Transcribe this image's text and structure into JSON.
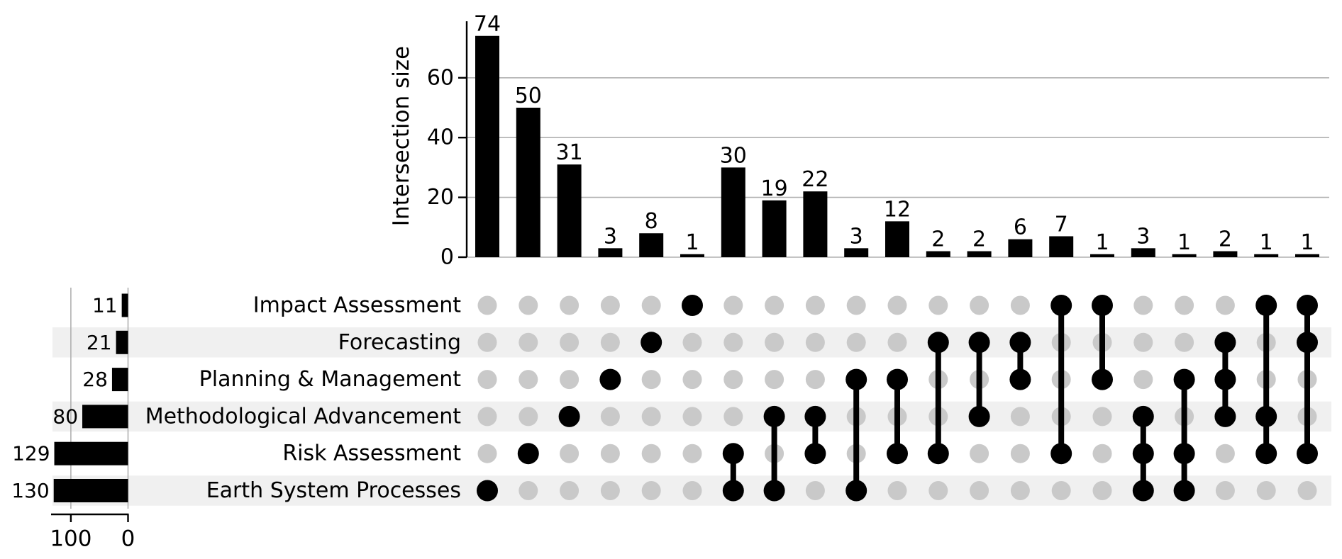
{
  "chart_data": {
    "type": "upset",
    "ylabel": "Intersection size",
    "intersection_axis_ticks": [
      0,
      20,
      40,
      60
    ],
    "totals_axis_ticks": [
      100,
      0
    ],
    "sets": [
      {
        "label": "Impact Assessment",
        "total": 11
      },
      {
        "label": "Forecasting",
        "total": 21
      },
      {
        "label": "Planning & Management",
        "total": 28
      },
      {
        "label": "Methodological Advancement",
        "total": 80
      },
      {
        "label": "Risk Assessment",
        "total": 129
      },
      {
        "label": "Earth System Processes",
        "total": 130
      }
    ],
    "intersections": [
      {
        "size": 74,
        "sets": [
          "Earth System Processes"
        ]
      },
      {
        "size": 50,
        "sets": [
          "Risk Assessment"
        ]
      },
      {
        "size": 31,
        "sets": [
          "Methodological Advancement"
        ]
      },
      {
        "size": 3,
        "sets": [
          "Planning & Management"
        ]
      },
      {
        "size": 8,
        "sets": [
          "Forecasting"
        ]
      },
      {
        "size": 1,
        "sets": [
          "Impact Assessment"
        ]
      },
      {
        "size": 30,
        "sets": [
          "Risk Assessment",
          "Earth System Processes"
        ]
      },
      {
        "size": 19,
        "sets": [
          "Methodological Advancement",
          "Earth System Processes"
        ]
      },
      {
        "size": 22,
        "sets": [
          "Methodological Advancement",
          "Risk Assessment"
        ]
      },
      {
        "size": 3,
        "sets": [
          "Planning & Management",
          "Earth System Processes"
        ]
      },
      {
        "size": 12,
        "sets": [
          "Planning & Management",
          "Risk Assessment"
        ]
      },
      {
        "size": 2,
        "sets": [
          "Forecasting",
          "Risk Assessment"
        ]
      },
      {
        "size": 2,
        "sets": [
          "Forecasting",
          "Methodological Advancement"
        ]
      },
      {
        "size": 6,
        "sets": [
          "Forecasting",
          "Planning & Management"
        ]
      },
      {
        "size": 7,
        "sets": [
          "Impact Assessment",
          "Risk Assessment"
        ]
      },
      {
        "size": 1,
        "sets": [
          "Impact Assessment",
          "Planning & Management"
        ]
      },
      {
        "size": 3,
        "sets": [
          "Methodological Advancement",
          "Risk Assessment",
          "Earth System Processes"
        ]
      },
      {
        "size": 1,
        "sets": [
          "Planning & Management",
          "Risk Assessment",
          "Earth System Processes"
        ]
      },
      {
        "size": 2,
        "sets": [
          "Forecasting",
          "Planning & Management",
          "Methodological Advancement"
        ]
      },
      {
        "size": 1,
        "sets": [
          "Impact Assessment",
          "Methodological Advancement",
          "Risk Assessment"
        ]
      },
      {
        "size": 1,
        "sets": [
          "Impact Assessment",
          "Forecasting",
          "Risk Assessment"
        ]
      }
    ],
    "colors": {
      "bar": "#000000",
      "active_dot": "#000000",
      "inactive_dot": "#c9c9c9",
      "row_band": "#f0f0f0",
      "gridline": "#b0b0b0",
      "axis": "#000000"
    }
  }
}
